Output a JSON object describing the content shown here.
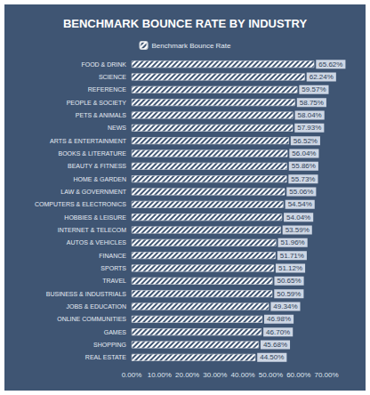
{
  "chart_data": {
    "type": "bar",
    "title": "BENCHMARK BOUNCE RATE BY INDUSTRY",
    "orientation": "horizontal",
    "categories": [
      "FOOD & DRINK",
      "SCIENCE",
      "REFERENCE",
      "PEOPLE & SOCIETY",
      "PETS & ANIMALS",
      "NEWS",
      "ARTS & ENTERTAINMENT",
      "BOOKS & LITERATURE",
      "BEAUTY & FITNESS",
      "HOME & GARDEN",
      "LAW & GOVERNMENT",
      "COMPUTERS & ELECTRONICS",
      "HOBBIES & LEISURE",
      "INTERNET & TELECOM",
      "AUTOS & VEHICLES",
      "FINANCE",
      "SPORTS",
      "TRAVEL",
      "BUSINESS & INDUSTRIALS",
      "JOBS & EDUCATION",
      "ONLINE COMMUNITIES",
      "GAMES",
      "SHOPPING",
      "REAL ESTATE"
    ],
    "series": [
      {
        "name": "Benchmark Bounce Rate",
        "color": "#ffffff",
        "values": [
          65.62,
          62.24,
          59.57,
          58.75,
          58.04,
          57.93,
          56.52,
          56.04,
          55.86,
          55.73,
          55.06,
          54.54,
          54.04,
          53.59,
          51.96,
          51.71,
          51.12,
          50.65,
          50.59,
          49.34,
          46.98,
          46.7,
          45.68,
          44.5
        ],
        "value_labels": [
          "65.62%",
          "62.24%",
          "59.57%",
          "58.75%",
          "58.04%",
          "57.93%",
          "56.52%",
          "56.04%",
          "55.86%",
          "55.73%",
          "55.06%",
          "54.54%",
          "54.04%",
          "53.59%",
          "51.96%",
          "51.71%",
          "51.12%",
          "50.65%",
          "50.59%",
          "49.34%",
          "46.98%",
          "46.70%",
          "45.68%",
          "44.50%"
        ]
      }
    ],
    "xlim": [
      0,
      70
    ],
    "xticks": [
      {
        "value": 0,
        "label": "0.00%"
      },
      {
        "value": 10,
        "label": "10.00%"
      },
      {
        "value": 20,
        "label": "20.00%"
      },
      {
        "value": 30,
        "label": "30.00%"
      },
      {
        "value": 40,
        "label": "40.00%"
      },
      {
        "value": 50,
        "label": "50.00%"
      },
      {
        "value": 60,
        "label": "60.00%"
      },
      {
        "value": 70,
        "label": "70.00%"
      }
    ],
    "grid": false,
    "data_labels": true,
    "legend": "top"
  }
}
